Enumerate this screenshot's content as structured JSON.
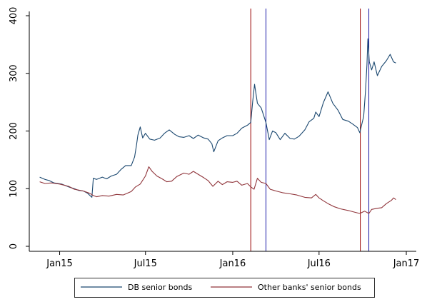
{
  "chart_data": {
    "type": "line",
    "title": "",
    "xlabel": "",
    "ylabel": "",
    "xlim": [
      "2014-11-10",
      "2017-01-10"
    ],
    "ylim": [
      0,
      400
    ],
    "x_ticks": [
      {
        "date": "2015-01-01",
        "label": "Jan15"
      },
      {
        "date": "2015-07-01",
        "label": "Jul15"
      },
      {
        "date": "2016-01-01",
        "label": "Jan16"
      },
      {
        "date": "2016-07-01",
        "label": "Jul16"
      },
      {
        "date": "2017-01-01",
        "label": "Jan17"
      }
    ],
    "y_ticks": [
      0,
      100,
      200,
      300,
      400
    ],
    "grid": false,
    "legend_position": "bottom",
    "vertical_lines": [
      {
        "date": "2016-02-08",
        "color": "#990000"
      },
      {
        "date": "2016-03-11",
        "color": "#1a1aa6"
      },
      {
        "date": "2016-09-26",
        "color": "#990000"
      },
      {
        "date": "2016-10-14",
        "color": "#1a1aa6"
      }
    ],
    "series": [
      {
        "name": "DB senior bonds",
        "color": "#1a476f",
        "points": [
          [
            "2014-11-20",
            120
          ],
          [
            "2014-12-01",
            116
          ],
          [
            "2014-12-10",
            114
          ],
          [
            "2014-12-20",
            110
          ],
          [
            "2015-01-05",
            108
          ],
          [
            "2015-01-20",
            103
          ],
          [
            "2015-02-01",
            100
          ],
          [
            "2015-02-10",
            97
          ],
          [
            "2015-02-20",
            96
          ],
          [
            "2015-03-01",
            92
          ],
          [
            "2015-03-10",
            85
          ],
          [
            "2015-03-13",
            118
          ],
          [
            "2015-03-20",
            116
          ],
          [
            "2015-04-01",
            120
          ],
          [
            "2015-04-10",
            117
          ],
          [
            "2015-04-20",
            122
          ],
          [
            "2015-05-01",
            125
          ],
          [
            "2015-05-10",
            133
          ],
          [
            "2015-05-20",
            140
          ],
          [
            "2015-06-01",
            140
          ],
          [
            "2015-06-08",
            155
          ],
          [
            "2015-06-12",
            175
          ],
          [
            "2015-06-15",
            193
          ],
          [
            "2015-06-20",
            207
          ],
          [
            "2015-06-25",
            188
          ],
          [
            "2015-07-01",
            196
          ],
          [
            "2015-07-10",
            186
          ],
          [
            "2015-07-20",
            184
          ],
          [
            "2015-08-01",
            188
          ],
          [
            "2015-08-10",
            196
          ],
          [
            "2015-08-20",
            202
          ],
          [
            "2015-09-01",
            194
          ],
          [
            "2015-09-10",
            190
          ],
          [
            "2015-09-20",
            189
          ],
          [
            "2015-10-01",
            192
          ],
          [
            "2015-10-10",
            187
          ],
          [
            "2015-10-20",
            193
          ],
          [
            "2015-11-01",
            188
          ],
          [
            "2015-11-10",
            186
          ],
          [
            "2015-11-18",
            178
          ],
          [
            "2015-11-22",
            164
          ],
          [
            "2015-12-01",
            183
          ],
          [
            "2015-12-10",
            188
          ],
          [
            "2015-12-20",
            192
          ],
          [
            "2016-01-01",
            192
          ],
          [
            "2016-01-10",
            196
          ],
          [
            "2016-01-20",
            205
          ],
          [
            "2016-02-01",
            210
          ],
          [
            "2016-02-08",
            215
          ],
          [
            "2016-02-12",
            250
          ],
          [
            "2016-02-16",
            281
          ],
          [
            "2016-02-22",
            248
          ],
          [
            "2016-03-01",
            240
          ],
          [
            "2016-03-11",
            215
          ],
          [
            "2016-03-18",
            185
          ],
          [
            "2016-03-25",
            200
          ],
          [
            "2016-04-01",
            197
          ],
          [
            "2016-04-10",
            185
          ],
          [
            "2016-04-20",
            196
          ],
          [
            "2016-05-01",
            187
          ],
          [
            "2016-05-10",
            186
          ],
          [
            "2016-05-20",
            191
          ],
          [
            "2016-06-01",
            202
          ],
          [
            "2016-06-10",
            216
          ],
          [
            "2016-06-20",
            222
          ],
          [
            "2016-06-24",
            233
          ],
          [
            "2016-07-01",
            225
          ],
          [
            "2016-07-10",
            249
          ],
          [
            "2016-07-20",
            268
          ],
          [
            "2016-07-30",
            248
          ],
          [
            "2016-08-10",
            236
          ],
          [
            "2016-08-20",
            220
          ],
          [
            "2016-09-01",
            217
          ],
          [
            "2016-09-10",
            212
          ],
          [
            "2016-09-20",
            206
          ],
          [
            "2016-09-25",
            197
          ],
          [
            "2016-09-30",
            215
          ],
          [
            "2016-10-03",
            225
          ],
          [
            "2016-10-07",
            270
          ],
          [
            "2016-10-10",
            315
          ],
          [
            "2016-10-12",
            360
          ],
          [
            "2016-10-15",
            320
          ],
          [
            "2016-10-20",
            306
          ],
          [
            "2016-10-25",
            320
          ],
          [
            "2016-11-01",
            296
          ],
          [
            "2016-11-10",
            312
          ],
          [
            "2016-11-20",
            322
          ],
          [
            "2016-11-28",
            333
          ],
          [
            "2016-12-05",
            320
          ],
          [
            "2016-12-10",
            318
          ]
        ]
      },
      {
        "name": "Other banks' senior bonds",
        "color": "#90353b",
        "points": [
          [
            "2014-11-20",
            112
          ],
          [
            "2014-12-01",
            109
          ],
          [
            "2014-12-15",
            110
          ],
          [
            "2015-01-01",
            108
          ],
          [
            "2015-01-20",
            104
          ],
          [
            "2015-02-01",
            99
          ],
          [
            "2015-02-20",
            96
          ],
          [
            "2015-03-05",
            92
          ],
          [
            "2015-03-13",
            88
          ],
          [
            "2015-03-20",
            86
          ],
          [
            "2015-04-01",
            88
          ],
          [
            "2015-04-15",
            87
          ],
          [
            "2015-05-01",
            90
          ],
          [
            "2015-05-15",
            89
          ],
          [
            "2015-06-01",
            95
          ],
          [
            "2015-06-10",
            103
          ],
          [
            "2015-06-20",
            108
          ],
          [
            "2015-07-01",
            122
          ],
          [
            "2015-07-08",
            138
          ],
          [
            "2015-07-15",
            130
          ],
          [
            "2015-07-25",
            122
          ],
          [
            "2015-08-05",
            117
          ],
          [
            "2015-08-15",
            112
          ],
          [
            "2015-08-25",
            113
          ],
          [
            "2015-09-05",
            121
          ],
          [
            "2015-09-20",
            127
          ],
          [
            "2015-10-01",
            125
          ],
          [
            "2015-10-10",
            130
          ],
          [
            "2015-10-20",
            125
          ],
          [
            "2015-11-01",
            119
          ],
          [
            "2015-11-10",
            114
          ],
          [
            "2015-11-20",
            104
          ],
          [
            "2015-12-01",
            113
          ],
          [
            "2015-12-10",
            107
          ],
          [
            "2015-12-20",
            112
          ],
          [
            "2016-01-01",
            111
          ],
          [
            "2016-01-10",
            113
          ],
          [
            "2016-01-20",
            106
          ],
          [
            "2016-02-01",
            109
          ],
          [
            "2016-02-08",
            103
          ],
          [
            "2016-02-15",
            99
          ],
          [
            "2016-02-22",
            118
          ],
          [
            "2016-03-01",
            111
          ],
          [
            "2016-03-11",
            109
          ],
          [
            "2016-03-20",
            99
          ],
          [
            "2016-04-01",
            96
          ],
          [
            "2016-04-15",
            93
          ],
          [
            "2016-05-01",
            91
          ],
          [
            "2016-05-15",
            89
          ],
          [
            "2016-06-01",
            85
          ],
          [
            "2016-06-15",
            84
          ],
          [
            "2016-06-24",
            90
          ],
          [
            "2016-07-01",
            84
          ],
          [
            "2016-07-10",
            79
          ],
          [
            "2016-07-20",
            74
          ],
          [
            "2016-08-01",
            69
          ],
          [
            "2016-08-15",
            65
          ],
          [
            "2016-09-01",
            62
          ],
          [
            "2016-09-15",
            59
          ],
          [
            "2016-09-25",
            57
          ],
          [
            "2016-10-05",
            61
          ],
          [
            "2016-10-14",
            57
          ],
          [
            "2016-10-20",
            64
          ],
          [
            "2016-11-01",
            66
          ],
          [
            "2016-11-10",
            67
          ],
          [
            "2016-11-20",
            74
          ],
          [
            "2016-12-01",
            80
          ],
          [
            "2016-12-05",
            84
          ],
          [
            "2016-12-10",
            81
          ]
        ]
      }
    ]
  }
}
